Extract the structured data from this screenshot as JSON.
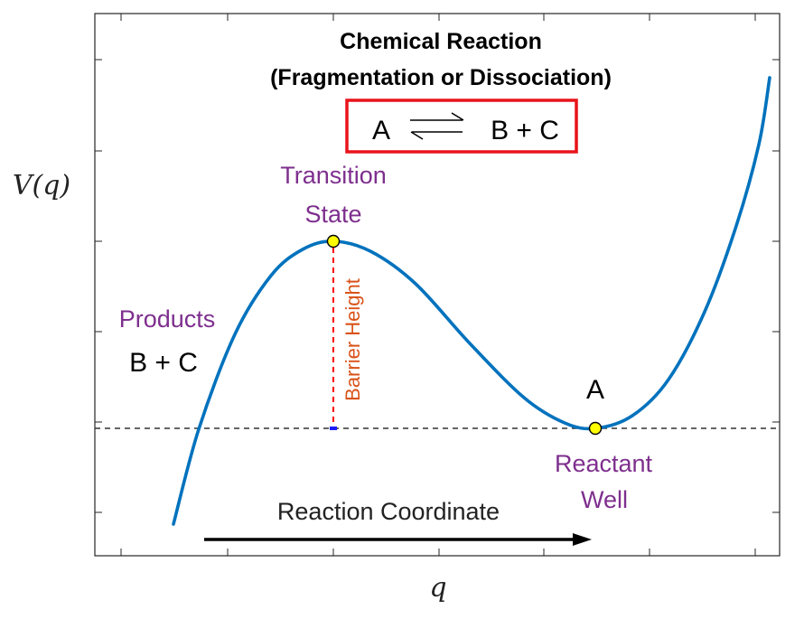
{
  "figure": {
    "title_line1": "Chemical Reaction",
    "title_line2": "(Fragmentation or Dissociation)",
    "equation": {
      "left": "A",
      "right": "B + C",
      "arrow": "equilibrium-arrows-icon",
      "box_color": "#e8141a"
    },
    "ylabel": "V(q)",
    "xlabel": "q",
    "labels": {
      "transition_line1": "Transition",
      "transition_line2": "State",
      "products_line1": "Products",
      "products_line2": "B + C",
      "reactant_species": "A",
      "reactant_line1": "Reactant",
      "reactant_line2": "Well",
      "barrier": "Barrier Height",
      "coordinate": "Reaction Coordinate"
    },
    "colors": {
      "curve": "#0072bd",
      "label_purple": "#7e2f8e",
      "barrier_text": "#d95319",
      "barrier_line": "#ff0000",
      "marker_fill": "#ffff00",
      "reference_line": "#333333"
    },
    "curve": {
      "x_range": [
        0,
        1
      ],
      "y_range": [
        0,
        1
      ],
      "transition_state": {
        "x": 0.36,
        "y": 0.64
      },
      "reactant_well": {
        "x": 0.75,
        "y": 0.26
      }
    }
  }
}
